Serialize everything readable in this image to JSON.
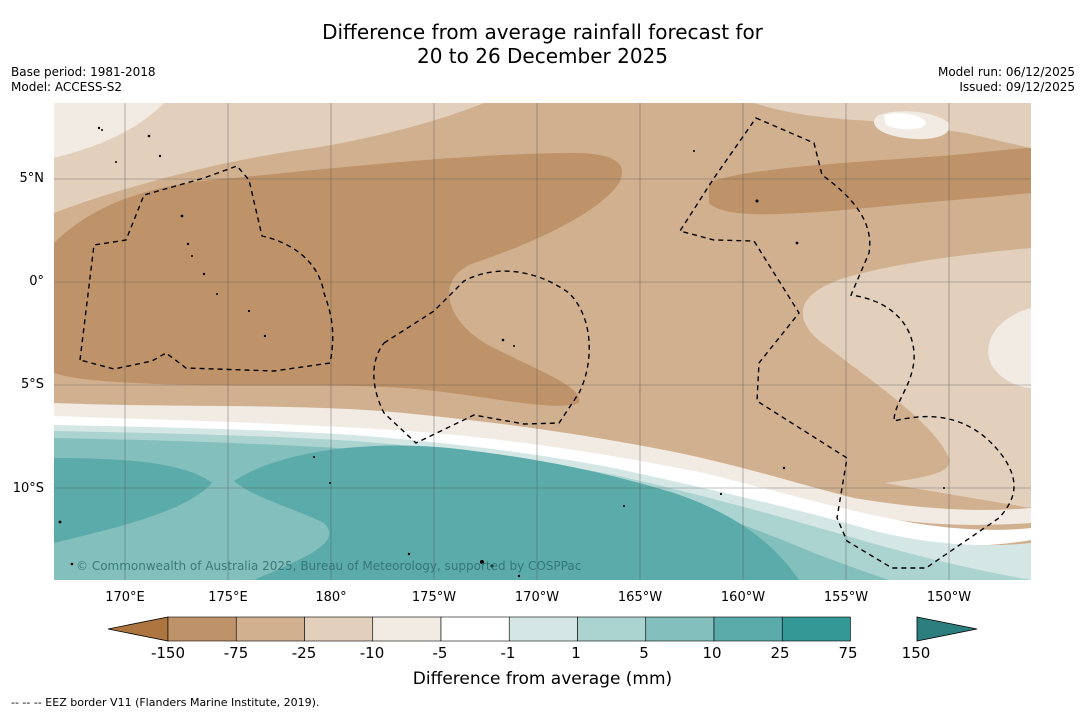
{
  "header": {
    "title_line1": "Difference from average rainfall forecast for",
    "title_line2": "20 to 26 December 2025",
    "base_period": "Base period: 1981-2018",
    "model": "Model: ACCESS-S2",
    "model_run": "Model run: 06/12/2025",
    "issued": "Issued: 09/12/2025"
  },
  "map": {
    "lat_labels": [
      "5°N",
      "0°",
      "5°S",
      "10°S"
    ],
    "lon_labels": [
      "170°E",
      "175°E",
      "180°",
      "175°W",
      "170°W",
      "165°W",
      "160°W",
      "155°W",
      "150°W"
    ],
    "copyright": "© Commonwealth of Australia 2025, Bureau of Meteorology, supported by COSPPac"
  },
  "legend": {
    "title": "Difference from average (mm)",
    "ticks": [
      "-150",
      "-75",
      "-25",
      "-10",
      "-5",
      "-1",
      "1",
      "5",
      "10",
      "25",
      "75",
      "150"
    ],
    "colors": [
      "#ad7641",
      "#bf9369",
      "#d1b08f",
      "#e2cfbc",
      "#f1ebe4",
      "#ffffff",
      "#d4e7e5",
      "#abd3d0",
      "#83bfbc",
      "#5aabaa",
      "#349896",
      "#2c7f7e"
    ]
  },
  "footer": {
    "eez_note": "--  --  -- EEZ border V11 (Flanders Marine Institute, 2019)."
  }
}
